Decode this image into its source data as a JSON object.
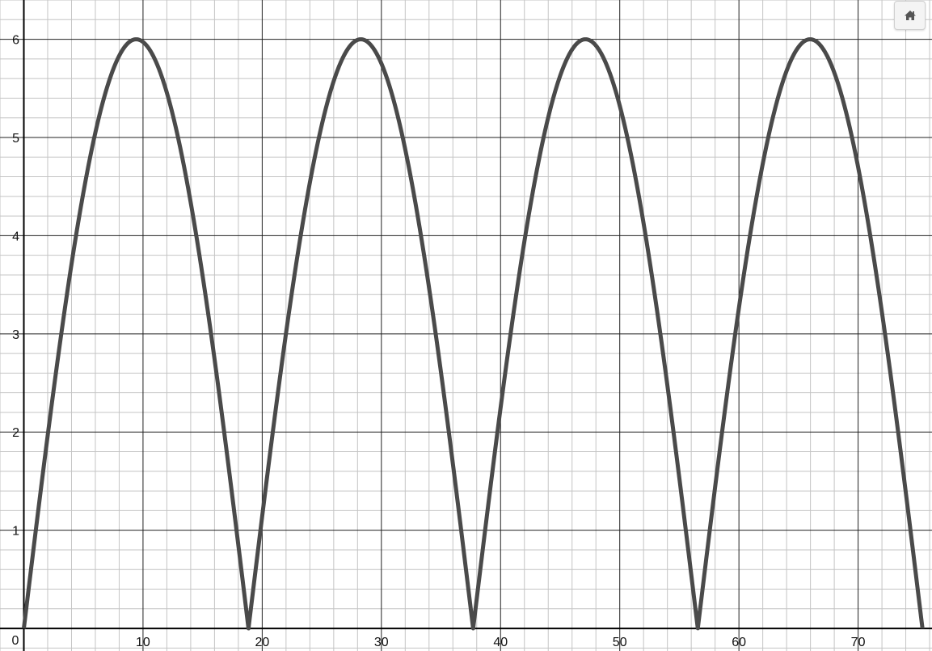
{
  "chart_data": {
    "type": "line",
    "title": "",
    "xlabel": "",
    "ylabel": "",
    "xlim": [
      -2,
      76.2
    ],
    "ylim": [
      -0.23,
      6.4
    ],
    "grid": true,
    "legend": "none",
    "x_ticks": [
      "10",
      "20",
      "30",
      "40",
      "50",
      "60",
      "70"
    ],
    "y_ticks": [
      "1",
      "2",
      "3",
      "4",
      "5",
      "6"
    ],
    "origin_label": "0",
    "series": [
      {
        "color": "#4a4a4a",
        "function": "y = 6*|sin(x/6)|",
        "x": [
          0,
          2,
          4,
          6,
          8,
          9.42,
          11,
          13,
          15,
          17,
          18.85,
          20,
          22,
          24,
          26,
          28.27,
          30,
          32,
          34,
          36,
          37.7,
          39,
          41,
          43,
          45,
          47.12,
          49,
          51,
          53,
          55,
          56.55,
          58,
          60,
          62,
          64,
          65.97,
          68,
          70,
          72,
          74,
          75.4
        ],
        "values": [
          0.0,
          1.96,
          3.71,
          5.05,
          5.82,
          6.0,
          5.93,
          5.41,
          4.49,
          3.25,
          0.0,
          1.1,
          2.87,
          4.33,
          5.42,
          6.0,
          5.84,
          5.15,
          4.07,
          2.69,
          0.0,
          1.28,
          3.01,
          4.43,
          5.46,
          6.0,
          5.85,
          5.15,
          4.08,
          2.75,
          0.0,
          1.44,
          3.32,
          4.82,
          5.74,
          6.0,
          5.72,
          4.84,
          3.42,
          1.63,
          0.0
        ]
      }
    ]
  },
  "toolbar": {
    "home_icon": "home-icon"
  }
}
